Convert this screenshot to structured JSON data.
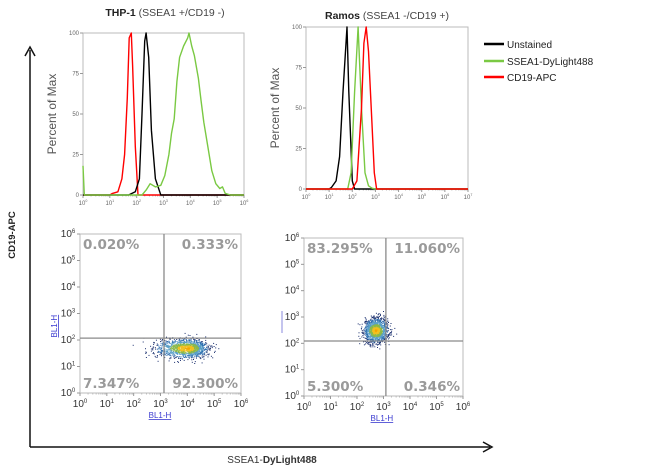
{
  "figure": {
    "y_axis_label": "CD19-APC",
    "x_axis_label_prefix": "SSEA1-",
    "x_axis_label_bold": "DyLight488"
  },
  "legend": [
    {
      "label": "Unstained",
      "color": "#000000"
    },
    {
      "label": "SSEA1-DyLight488",
      "color": "#7ac943"
    },
    {
      "label": "CD19-APC",
      "color": "#ff0000"
    }
  ],
  "chart_data": [
    {
      "type": "line",
      "title_bold": "THP-1",
      "title_rest": " (SSEA1 +/CD19 -)",
      "ylabel": "Percent of Max",
      "xscale": "log",
      "xlim_log10": [
        0,
        6
      ],
      "ylim": [
        0,
        100
      ],
      "yticks": [
        0,
        25,
        50,
        75,
        100
      ],
      "series": [
        {
          "name": "CD19-APC",
          "color": "#ff0000",
          "log10x": [
            0,
            1,
            1.1,
            1.3,
            1.45,
            1.55,
            1.65,
            1.72,
            1.8,
            1.85,
            1.95,
            2.05,
            6
          ],
          "y": [
            0,
            0,
            1,
            2,
            10,
            25,
            60,
            97,
            100,
            80,
            30,
            0,
            0
          ]
        },
        {
          "name": "Unstained",
          "color": "#000000",
          "log10x": [
            0,
            1.7,
            1.95,
            2.1,
            2.2,
            2.3,
            2.35,
            2.45,
            2.55,
            2.7,
            2.9,
            6
          ],
          "y": [
            0,
            0,
            2,
            10,
            50,
            95,
            100,
            85,
            40,
            10,
            0,
            0
          ]
        },
        {
          "name": "SSEA1-DyLight488",
          "color": "#7ac943",
          "log10x": [
            0,
            0.05,
            2.2,
            2.35,
            2.5,
            2.7,
            2.9,
            3.05,
            3.2,
            3.3,
            3.4,
            3.5,
            3.6,
            3.75,
            3.9,
            3.95,
            4.05,
            4.15,
            4.3,
            4.4,
            4.5,
            4.65,
            4.8,
            4.95,
            5.1,
            5.2,
            5.3,
            5.5,
            6
          ],
          "y": [
            18,
            0,
            0,
            3,
            7,
            5,
            6,
            12,
            25,
            38,
            47,
            70,
            85,
            92,
            97,
            100,
            92,
            86,
            72,
            58,
            45,
            30,
            15,
            7,
            4,
            5,
            1,
            0,
            0
          ]
        }
      ]
    },
    {
      "type": "line",
      "title_bold": "Ramos",
      "title_rest": " (SSEA1 -/CD19 +)",
      "ylabel": "Percent of Max",
      "xscale": "log",
      "xlim_log10": [
        0,
        7
      ],
      "ylim": [
        0,
        100
      ],
      "yticks": [
        0,
        25,
        50,
        75,
        100
      ],
      "series": [
        {
          "name": "Unstained",
          "color": "#000000",
          "log10x": [
            0,
            1,
            1.1,
            1.3,
            1.45,
            1.6,
            1.77,
            1.85,
            2,
            2.1,
            7
          ],
          "y": [
            0,
            0,
            1,
            5,
            20,
            60,
            100,
            60,
            5,
            0,
            0
          ]
        },
        {
          "name": "SSEA1-DyLight488",
          "color": "#7ac943",
          "log10x": [
            0,
            1.8,
            1.95,
            2.1,
            2.25,
            2.4,
            2.55,
            2.7,
            2.85,
            3.0,
            7
          ],
          "y": [
            0,
            0,
            10,
            60,
            100,
            50,
            10,
            2,
            0.5,
            0,
            0
          ]
        },
        {
          "name": "CD19-APC",
          "color": "#ff0000",
          "log10x": [
            0,
            2,
            2.2,
            2.4,
            2.5,
            2.6,
            2.7,
            2.85,
            2.95,
            3.05,
            7
          ],
          "y": [
            0,
            0,
            5,
            50,
            90,
            100,
            85,
            40,
            10,
            0,
            0
          ]
        }
      ]
    },
    {
      "type": "scatter",
      "xlabel": "BL1-H",
      "ylabel": "BL1-H",
      "xscale": "log",
      "yscale": "log",
      "xlim_log10": [
        0,
        6
      ],
      "ylim_log10": [
        0,
        6
      ],
      "gate_log10": {
        "x": 3.13,
        "y": 2.07
      },
      "population_center_log10": {
        "x": 4.0,
        "y": 1.7
      },
      "quadrants": {
        "upper_left": "0.020%",
        "upper_right": "0.333%",
        "lower_left": "7.347%",
        "lower_right": "92.300%"
      }
    },
    {
      "type": "scatter",
      "xlabel": "BL1-H",
      "ylabel": "",
      "xscale": "log",
      "yscale": "log",
      "xlim_log10": [
        0,
        6
      ],
      "ylim_log10": [
        0,
        6
      ],
      "gate_log10": {
        "x": 3.09,
        "y": 2.09
      },
      "population_center_log10": {
        "x": 2.7,
        "y": 2.5
      },
      "quadrants": {
        "upper_left": "83.295%",
        "upper_right": "11.060%",
        "lower_left": "5.300%",
        "lower_right": "0.346%"
      }
    }
  ]
}
